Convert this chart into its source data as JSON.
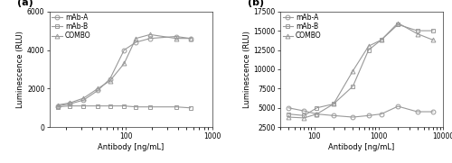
{
  "panel_a": {
    "xlabel": "Antibody [ng/mL]",
    "ylabel": "Luminescence (RLU)",
    "ylim": [
      0,
      6000
    ],
    "yticks": [
      0,
      2000,
      4000,
      6000
    ],
    "xlim": [
      13,
      1000
    ],
    "label": "(a)",
    "mabA_x": [
      16,
      22,
      32,
      47,
      65,
      95,
      130,
      190,
      380,
      560
    ],
    "mabA_y": [
      1100,
      1200,
      1400,
      1900,
      2500,
      4000,
      4400,
      4600,
      4700,
      4600
    ],
    "mabB_x": [
      16,
      22,
      32,
      47,
      65,
      95,
      130,
      190,
      380,
      560
    ],
    "mabB_y": [
      1050,
      1100,
      1100,
      1100,
      1100,
      1100,
      1050,
      1050,
      1050,
      1000
    ],
    "combo_x": [
      16,
      22,
      32,
      47,
      65,
      95,
      130,
      190,
      380,
      560
    ],
    "combo_y": [
      1150,
      1250,
      1500,
      2000,
      2400,
      3300,
      4600,
      4800,
      4600,
      4600
    ],
    "legend_labels": [
      "mAb-A",
      "mAb-B",
      "COMBO"
    ]
  },
  "panel_b": {
    "xlabel": "Antibody [ng/mL]",
    "ylabel": "Luminescence (RLU)",
    "ylim": [
      2500,
      17500
    ],
    "yticks": [
      2500,
      5000,
      7500,
      10000,
      12500,
      15000,
      17500
    ],
    "xlim": [
      30,
      10000
    ],
    "label": "(b)",
    "mabA_x": [
      40,
      70,
      110,
      200,
      400,
      700,
      1100,
      2000,
      4000,
      7000
    ],
    "mabA_y": [
      5000,
      4600,
      4200,
      4000,
      3800,
      4000,
      4200,
      5200,
      4500,
      4500
    ],
    "mabB_x": [
      40,
      70,
      110,
      200,
      400,
      700,
      1100,
      2000,
      4000,
      7000
    ],
    "mabB_y": [
      4200,
      4000,
      5000,
      5500,
      7800,
      12500,
      13800,
      15800,
      15000,
      15000
    ],
    "combo_x": [
      40,
      70,
      110,
      200,
      400,
      700,
      1100,
      2000,
      4000,
      7000
    ],
    "combo_y": [
      3800,
      3700,
      4200,
      5500,
      9800,
      13000,
      13800,
      16000,
      14600,
      13800
    ],
    "legend_labels": [
      "mAb-A",
      "mAb-B",
      "COMBO"
    ]
  },
  "line_color": "#999999",
  "marker_mabA": "o",
  "marker_mabB": "s",
  "marker_combo": "^",
  "markersize": 3.5,
  "linewidth": 0.8,
  "fontsize_label": 6,
  "fontsize_tick": 5.5,
  "fontsize_legend": 5.5,
  "fontsize_panel_label": 8
}
